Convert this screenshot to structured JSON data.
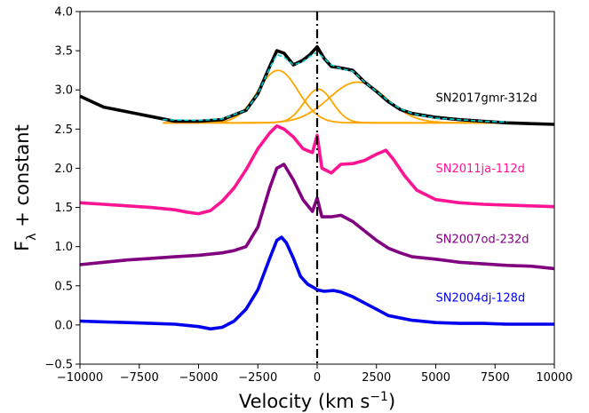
{
  "chart_data": {
    "type": "line",
    "title": "",
    "xlabel": "Velocity (km s",
    "xlabel_sup": "−1",
    "xlabel_close": ")",
    "ylabel": "F",
    "ylabel_sub": "λ",
    "ylabel_rest": " + constant",
    "xlim": [
      -10000,
      10000
    ],
    "ylim": [
      -0.5,
      4.0
    ],
    "xticks": [
      -10000,
      -7500,
      -5000,
      -2500,
      0,
      2500,
      5000,
      7500,
      10000
    ],
    "xtick_labels": [
      "−10000",
      "−7500",
      "−5000",
      "−2500",
      "0",
      "2500",
      "5000",
      "7500",
      "10000"
    ],
    "yticks": [
      -0.5,
      0.0,
      0.5,
      1.0,
      1.5,
      2.0,
      2.5,
      3.0,
      3.5,
      4.0
    ],
    "ytick_labels": [
      "−0.5",
      "0.0",
      "0.5",
      "1.0",
      "1.5",
      "2.0",
      "2.5",
      "3.0",
      "3.5",
      "4.0"
    ],
    "vline": {
      "x": 0,
      "style": "dashdot",
      "color": "#000000"
    },
    "series": [
      {
        "name": "SN2017gmr-312d",
        "color": "#000000",
        "label_x": 5000,
        "label_y": 2.85,
        "x": [
          -10000,
          -9000,
          -8000,
          -7000,
          -6000,
          -5000,
          -4000,
          -3000,
          -2500,
          -2000,
          -1700,
          -1400,
          -1000,
          -600,
          -300,
          0,
          300,
          600,
          1000,
          1500,
          2000,
          2500,
          3000,
          3500,
          4000,
          5000,
          6000,
          7000,
          8000,
          9000,
          10000
        ],
        "y": [
          2.92,
          2.78,
          2.72,
          2.66,
          2.6,
          2.6,
          2.62,
          2.74,
          2.95,
          3.3,
          3.5,
          3.47,
          3.32,
          3.38,
          3.45,
          3.55,
          3.4,
          3.3,
          3.28,
          3.25,
          3.1,
          2.98,
          2.85,
          2.75,
          2.7,
          2.65,
          2.62,
          2.6,
          2.58,
          2.57,
          2.56
        ]
      },
      {
        "name": "SN2011ja-112d",
        "color": "#ff1493",
        "label_x": 5000,
        "label_y": 1.95,
        "x": [
          -10000,
          -9000,
          -8000,
          -7000,
          -6000,
          -5500,
          -5000,
          -4500,
          -4000,
          -3500,
          -3000,
          -2500,
          -2000,
          -1700,
          -1400,
          -1000,
          -600,
          -200,
          0,
          200,
          600,
          1000,
          1500,
          2000,
          2500,
          2900,
          3200,
          3700,
          4200,
          5000,
          6000,
          7000,
          8000,
          9000,
          10000
        ],
        "y": [
          1.56,
          1.54,
          1.52,
          1.5,
          1.47,
          1.44,
          1.42,
          1.46,
          1.58,
          1.75,
          1.98,
          2.25,
          2.45,
          2.54,
          2.5,
          2.4,
          2.25,
          2.2,
          2.42,
          2.0,
          1.94,
          2.05,
          2.06,
          2.1,
          2.18,
          2.23,
          2.12,
          1.9,
          1.72,
          1.6,
          1.56,
          1.54,
          1.53,
          1.52,
          1.51
        ]
      },
      {
        "name": "SN2007od-232d",
        "color": "#800080",
        "label_x": 5000,
        "label_y": 1.05,
        "x": [
          -10000,
          -9000,
          -8000,
          -7000,
          -6000,
          -5000,
          -4000,
          -3500,
          -3000,
          -2500,
          -2000,
          -1700,
          -1400,
          -1000,
          -600,
          -200,
          0,
          200,
          600,
          1000,
          1500,
          2000,
          2500,
          3000,
          3500,
          4000,
          5000,
          6000,
          7000,
          8000,
          9000,
          10000
        ],
        "y": [
          0.77,
          0.8,
          0.83,
          0.85,
          0.87,
          0.89,
          0.92,
          0.95,
          1.0,
          1.25,
          1.75,
          2.0,
          2.05,
          1.85,
          1.6,
          1.45,
          1.62,
          1.38,
          1.38,
          1.4,
          1.32,
          1.2,
          1.08,
          0.98,
          0.92,
          0.87,
          0.84,
          0.8,
          0.78,
          0.76,
          0.75,
          0.72
        ]
      },
      {
        "name": "SN2004dj-128d",
        "color": "#0000ee",
        "label_x": 5000,
        "label_y": 0.3,
        "x": [
          -10000,
          -9000,
          -8000,
          -7000,
          -6000,
          -5000,
          -4500,
          -4000,
          -3500,
          -3000,
          -2500,
          -2000,
          -1700,
          -1500,
          -1300,
          -1000,
          -700,
          -400,
          -100,
          0,
          300,
          700,
          1000,
          1500,
          2000,
          2500,
          3000,
          4000,
          5000,
          6000,
          7000,
          8000,
          9000,
          10000
        ],
        "y": [
          0.05,
          0.04,
          0.03,
          0.02,
          0.01,
          -0.02,
          -0.05,
          -0.03,
          0.05,
          0.2,
          0.45,
          0.85,
          1.08,
          1.12,
          1.05,
          0.85,
          0.62,
          0.52,
          0.47,
          0.45,
          0.43,
          0.44,
          0.42,
          0.36,
          0.28,
          0.2,
          0.12,
          0.06,
          0.03,
          0.02,
          0.02,
          0.01,
          0.01,
          0.01
        ]
      },
      {
        "name": "",
        "color": "#00ced1",
        "dash": "5,3",
        "x": [
          -6500,
          -5000,
          -4000,
          -3000,
          -2500,
          -2000,
          -1700,
          -1400,
          -1000,
          -600,
          -300,
          0,
          300,
          600,
          1000,
          1500,
          2000,
          2500,
          3000,
          3500,
          4000,
          5000,
          6000,
          7000,
          8000
        ],
        "y": [
          2.62,
          2.61,
          2.63,
          2.74,
          2.95,
          3.28,
          3.45,
          3.42,
          3.32,
          3.36,
          3.43,
          3.48,
          3.4,
          3.32,
          3.27,
          3.24,
          3.1,
          2.98,
          2.86,
          2.76,
          2.7,
          2.64,
          2.62,
          2.6,
          2.59
        ]
      }
    ],
    "components": [
      {
        "color": "#ffa500",
        "center": -1650,
        "amp": 0.67,
        "sigma": 850,
        "base": 2.58,
        "x_from": -6500,
        "x_to": 8000
      },
      {
        "color": "#ffa500",
        "center": 50,
        "amp": 0.43,
        "sigma": 600,
        "base": 2.58,
        "x_from": -6500,
        "x_to": 8000
      },
      {
        "color": "#ffa500",
        "center": 1700,
        "amp": 0.52,
        "sigma": 1200,
        "base": 2.58,
        "x_from": -6500,
        "x_to": 8000
      }
    ]
  }
}
